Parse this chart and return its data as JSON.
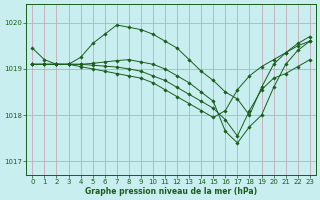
{
  "xlabel": "Graphe pression niveau de la mer (hPa)",
  "bg_color": "#c8eef0",
  "grid_color": "#c8a8b8",
  "line_color": "#1a5e1a",
  "marker_color": "#1a5e1a",
  "ylim": [
    1016.7,
    1020.4
  ],
  "yticks": [
    1017,
    1018,
    1019,
    1020
  ],
  "xlim": [
    -0.5,
    23.5
  ],
  "xticks": [
    0,
    1,
    2,
    3,
    4,
    5,
    6,
    7,
    8,
    9,
    10,
    11,
    12,
    13,
    14,
    15,
    16,
    17,
    18,
    19,
    20,
    21,
    22,
    23
  ],
  "series": [
    [
      1019.45,
      1019.2,
      1019.1,
      1019.1,
      1019.25,
      1019.55,
      1019.75,
      1019.95,
      1019.9,
      1019.85,
      1019.75,
      1019.6,
      1019.45,
      1019.2,
      1018.95,
      1018.75,
      1018.5,
      1018.35,
      1018.0,
      1018.6,
      1019.1,
      1019.35,
      1019.55,
      1019.7
    ],
    [
      1019.1,
      1019.1,
      1019.1,
      1019.1,
      1019.1,
      1019.12,
      1019.15,
      1019.18,
      1019.2,
      1019.15,
      1019.1,
      1019.0,
      1018.85,
      1018.7,
      1018.5,
      1018.3,
      1017.65,
      1017.4,
      1017.75,
      1018.0,
      1018.6,
      1019.1,
      1019.4,
      1019.6
    ],
    [
      1019.1,
      1019.1,
      1019.1,
      1019.1,
      1019.1,
      1019.08,
      1019.06,
      1019.04,
      1019.0,
      1018.95,
      1018.85,
      1018.75,
      1018.6,
      1018.45,
      1018.3,
      1018.15,
      1017.9,
      1017.55,
      1018.1,
      1018.55,
      1018.8,
      1018.9,
      1019.05,
      1019.2
    ],
    [
      1019.1,
      1019.1,
      1019.1,
      1019.1,
      1019.05,
      1019.0,
      1018.95,
      1018.9,
      1018.85,
      1018.8,
      1018.7,
      1018.55,
      1018.4,
      1018.25,
      1018.1,
      1017.95,
      1018.1,
      1018.55,
      1018.85,
      1019.05,
      1019.2,
      1019.35,
      1019.5,
      1019.6
    ]
  ]
}
